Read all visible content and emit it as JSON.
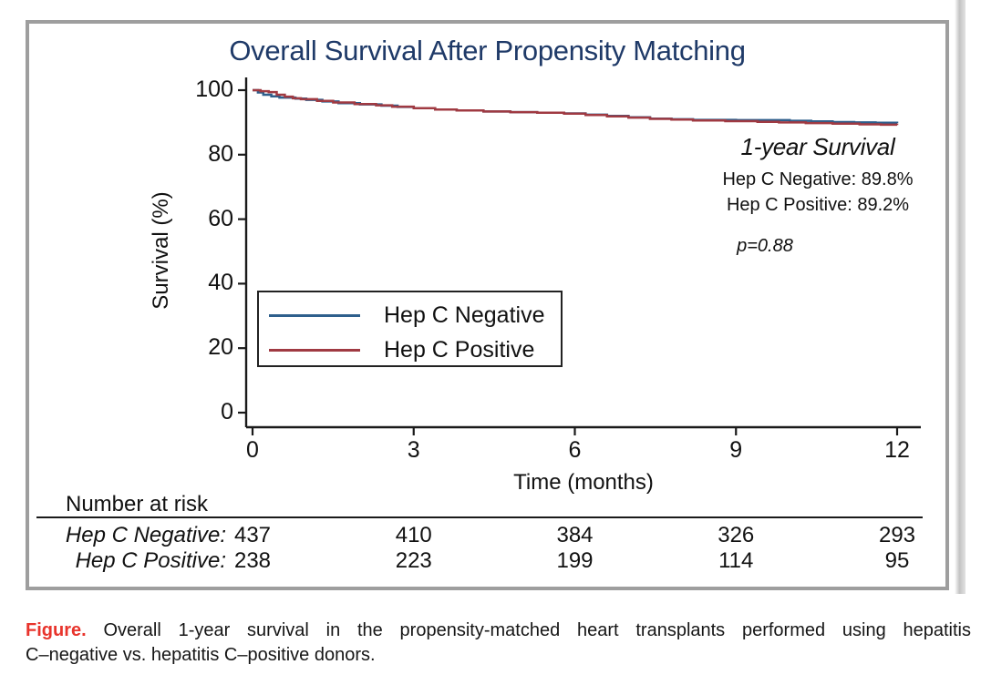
{
  "figure": {
    "title": "Overall Survival After Propensity Matching",
    "y_axis_label": "Survival (%)",
    "x_axis_label": "Time (months)",
    "annotation": {
      "heading": "1-year Survival",
      "line1": "Hep C Negative: 89.8%",
      "line2": "Hep C Positive: 89.2%",
      "p_value": "p=0.88"
    },
    "legend": [
      {
        "label": "Hep C Negative",
        "color": "#2e5f8c"
      },
      {
        "label": "Hep C Positive",
        "color": "#a03a42"
      }
    ],
    "risk_table": {
      "header": "Number at risk",
      "rows": [
        {
          "label": "Hep C Negative:",
          "values": [
            "437",
            "410",
            "384",
            "326",
            "293"
          ]
        },
        {
          "label": "Hep C Positive:",
          "values": [
            "238",
            "223",
            "199",
            "114",
            "95"
          ]
        }
      ]
    },
    "caption": {
      "label": "Figure.",
      "label_color": "#e8342c",
      "line1": "Overall 1-year survival in the propensity-matched heart transplants performed using hepatitis",
      "line2": "C–negative vs. hepatitis C–positive donors."
    }
  },
  "chart_data": {
    "type": "line",
    "subtype": "kaplan-meier-step",
    "title": "Overall Survival After Propensity Matching",
    "xlabel": "Time (months)",
    "ylabel": "Survival (%)",
    "xlim": [
      0,
      12
    ],
    "ylim": [
      0,
      100
    ],
    "x_ticks": [
      0,
      3,
      6,
      9,
      12
    ],
    "y_ticks": [
      0,
      20,
      40,
      60,
      80,
      100
    ],
    "grid": false,
    "legend_position": "inside-lower-left",
    "annotations": [
      "1-year Survival",
      "Hep C Negative: 89.8%",
      "Hep C Positive: 89.2%",
      "p=0.88"
    ],
    "series": [
      {
        "name": "Hep C Negative",
        "color": "#2e5f8c",
        "final_survival_pct": 89.8,
        "points": [
          [
            0,
            100
          ],
          [
            0.1,
            99.3
          ],
          [
            0.2,
            98.6
          ],
          [
            0.35,
            98.1
          ],
          [
            0.5,
            97.7
          ],
          [
            0.8,
            97.4
          ],
          [
            1.0,
            97.0
          ],
          [
            1.3,
            96.5
          ],
          [
            1.6,
            96.0
          ],
          [
            2.0,
            95.6
          ],
          [
            2.4,
            95.2
          ],
          [
            2.7,
            94.8
          ],
          [
            3.0,
            94.4
          ],
          [
            3.4,
            94.0
          ],
          [
            3.8,
            93.7
          ],
          [
            4.3,
            93.4
          ],
          [
            4.8,
            93.2
          ],
          [
            5.3,
            93.0
          ],
          [
            5.8,
            92.8
          ],
          [
            6.2,
            92.4
          ],
          [
            6.6,
            92.0
          ],
          [
            7.0,
            91.6
          ],
          [
            7.4,
            91.2
          ],
          [
            7.8,
            91.0
          ],
          [
            8.2,
            90.8
          ],
          [
            9.0,
            90.7
          ],
          [
            10.0,
            90.5
          ],
          [
            10.4,
            90.3
          ],
          [
            10.8,
            90.1
          ],
          [
            11.2,
            90.0
          ],
          [
            11.6,
            89.9
          ],
          [
            12,
            89.8
          ]
        ]
      },
      {
        "name": "Hep C Positive",
        "color": "#a03a42",
        "final_survival_pct": 89.2,
        "points": [
          [
            0,
            100
          ],
          [
            0.15,
            99.7
          ],
          [
            0.3,
            99.4
          ],
          [
            0.45,
            98.6
          ],
          [
            0.6,
            98.0
          ],
          [
            0.75,
            97.5
          ],
          [
            0.9,
            97.2
          ],
          [
            1.2,
            96.7
          ],
          [
            1.5,
            96.2
          ],
          [
            1.9,
            95.7
          ],
          [
            2.3,
            95.3
          ],
          [
            2.6,
            94.9
          ],
          [
            3.0,
            94.4
          ],
          [
            3.4,
            94.0
          ],
          [
            3.8,
            93.7
          ],
          [
            4.3,
            93.4
          ],
          [
            4.8,
            93.2
          ],
          [
            5.3,
            93.0
          ],
          [
            5.8,
            92.7
          ],
          [
            6.2,
            92.3
          ],
          [
            6.6,
            91.9
          ],
          [
            7.0,
            91.5
          ],
          [
            7.4,
            91.1
          ],
          [
            7.8,
            90.9
          ],
          [
            8.2,
            90.6
          ],
          [
            8.8,
            90.4
          ],
          [
            9.4,
            90.2
          ],
          [
            9.8,
            90.0
          ],
          [
            10.3,
            89.8
          ],
          [
            10.8,
            89.6
          ],
          [
            11.3,
            89.4
          ],
          [
            11.7,
            89.3
          ],
          [
            12,
            89.2
          ]
        ]
      }
    ],
    "number_at_risk": {
      "times": [
        0,
        3,
        6,
        9,
        12
      ],
      "Hep C Negative": [
        437,
        410,
        384,
        326,
        293
      ],
      "Hep C Positive": [
        238,
        223,
        199,
        114,
        95
      ]
    }
  }
}
